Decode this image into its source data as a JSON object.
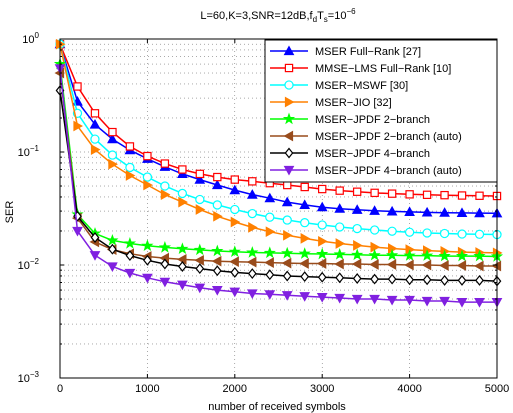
{
  "chart_data": {
    "type": "line",
    "title": "L=60,K=3,SNR=12dB,f_dT_s=10^{-6}",
    "title_parts": {
      "main": "L=60,K=3,SNR=12dB,f",
      "sub1": "d",
      "mid": "T",
      "sub2": "s",
      "eq": "=10",
      "sup": "−6"
    },
    "xlabel": "number of received symbols",
    "ylabel": "SER",
    "xlim": [
      0,
      5000
    ],
    "ylim": [
      0.001,
      1
    ],
    "yscale": "log",
    "grid": true,
    "legend_position": "top-right",
    "x_ticks": [
      0,
      1000,
      2000,
      3000,
      4000,
      5000
    ],
    "x_tick_labels": [
      "0",
      "1000",
      "2000",
      "3000",
      "4000",
      "5000"
    ],
    "y_ticks": [
      0.001,
      0.01,
      0.1,
      1
    ],
    "y_tick_labels": [
      {
        "base": "10",
        "exp": "−3"
      },
      {
        "base": "10",
        "exp": "−2"
      },
      {
        "base": "10",
        "exp": "−1"
      },
      {
        "base": "10",
        "exp": "0"
      }
    ],
    "x": [
      0,
      200,
      400,
      600,
      800,
      1000,
      1200,
      1400,
      1600,
      1800,
      2000,
      2200,
      2400,
      2600,
      2800,
      3000,
      3200,
      3400,
      3600,
      3800,
      4000,
      4200,
      4400,
      4600,
      4800,
      5000
    ],
    "series": [
      {
        "name": "MSER Full−Rank [27]",
        "color": "#0000ff",
        "marker": "triangle-up",
        "values": [
          0.9,
          0.28,
          0.175,
          0.13,
          0.104,
          0.087,
          0.074,
          0.064,
          0.057,
          0.051,
          0.046,
          0.042,
          0.039,
          0.036,
          0.034,
          0.0325,
          0.0315,
          0.0308,
          0.0302,
          0.0298,
          0.0295,
          0.0292,
          0.029,
          0.0289,
          0.0288,
          0.0287
        ]
      },
      {
        "name": "MMSE−LMS Full−Rank [10]",
        "color": "#ff0000",
        "marker": "square",
        "values": [
          0.9,
          0.38,
          0.22,
          0.15,
          0.112,
          0.092,
          0.079,
          0.07,
          0.064,
          0.06,
          0.057,
          0.055,
          0.053,
          0.051,
          0.049,
          0.047,
          0.0455,
          0.0445,
          0.0435,
          0.0428,
          0.0422,
          0.0418,
          0.0415,
          0.0412,
          0.041,
          0.0408
        ]
      },
      {
        "name": "MSER−MSWF [30]",
        "color": "#00ffff",
        "marker": "circle",
        "values": [
          0.9,
          0.22,
          0.13,
          0.094,
          0.073,
          0.06,
          0.05,
          0.043,
          0.038,
          0.034,
          0.031,
          0.0285,
          0.0265,
          0.025,
          0.0237,
          0.0226,
          0.0217,
          0.021,
          0.0204,
          0.0199,
          0.0195,
          0.0192,
          0.019,
          0.0188,
          0.0187,
          0.0186
        ]
      },
      {
        "name": "MSER−JIO [32]",
        "color": "#ff8000",
        "marker": "triangle-right",
        "values": [
          0.9,
          0.17,
          0.105,
          0.078,
          0.062,
          0.051,
          0.042,
          0.036,
          0.031,
          0.027,
          0.024,
          0.0215,
          0.0197,
          0.0183,
          0.0172,
          0.0162,
          0.0155,
          0.0149,
          0.0144,
          0.014,
          0.0137,
          0.0134,
          0.0132,
          0.013,
          0.0129,
          0.0128
        ]
      },
      {
        "name": "MSER−JPDF 2−branch",
        "color": "#00ff00",
        "marker": "star",
        "values": [
          0.6,
          0.028,
          0.019,
          0.0165,
          0.0155,
          0.0148,
          0.0143,
          0.0139,
          0.0136,
          0.0133,
          0.0131,
          0.0129,
          0.0128,
          0.0127,
          0.0126,
          0.0125,
          0.0124,
          0.0123,
          0.0122,
          0.0122,
          0.0121,
          0.0121,
          0.012,
          0.012,
          0.012,
          0.0119
        ]
      },
      {
        "name": "MSER−JPDF 2−branch (auto)",
        "color": "#994c1c",
        "marker": "triangle-left",
        "values": [
          0.5,
          0.026,
          0.016,
          0.0137,
          0.0126,
          0.0119,
          0.0115,
          0.0112,
          0.011,
          0.0108,
          0.0107,
          0.0106,
          0.0105,
          0.0104,
          0.0103,
          0.0103,
          0.0102,
          0.0102,
          0.0101,
          0.0101,
          0.01,
          0.01,
          0.0099,
          0.0099,
          0.0098,
          0.0098
        ]
      },
      {
        "name": "MSER−JPDF 4−branch",
        "color": "#000000",
        "marker": "diamond",
        "values": [
          0.35,
          0.027,
          0.0175,
          0.0138,
          0.0121,
          0.011,
          0.0102,
          0.0097,
          0.0093,
          0.0089,
          0.0086,
          0.0084,
          0.0082,
          0.008,
          0.0079,
          0.0078,
          0.0077,
          0.0076,
          0.0075,
          0.0075,
          0.0074,
          0.0074,
          0.0073,
          0.0073,
          0.0073,
          0.0072
        ]
      },
      {
        "name": "MSER−JPDF 4−branch (auto)",
        "color": "#8020e0",
        "marker": "triangle-down",
        "values": [
          0.55,
          0.02,
          0.0122,
          0.0097,
          0.0085,
          0.0077,
          0.0071,
          0.0067,
          0.0063,
          0.006,
          0.0058,
          0.0056,
          0.0055,
          0.0054,
          0.0053,
          0.0052,
          0.0051,
          0.005,
          0.005,
          0.0049,
          0.0049,
          0.0048,
          0.0048,
          0.0047,
          0.0047,
          0.0047
        ]
      }
    ]
  }
}
